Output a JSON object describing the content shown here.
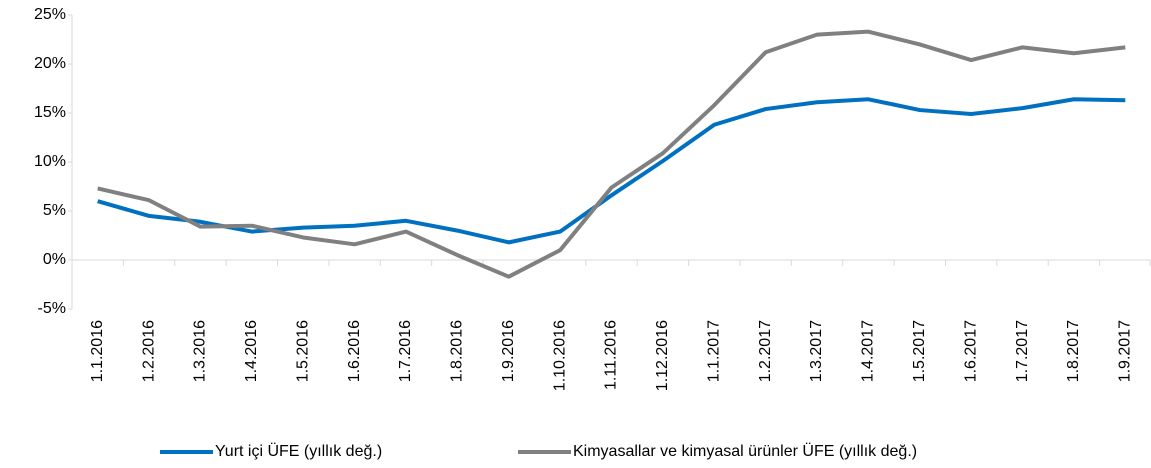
{
  "chart_data": {
    "type": "line",
    "categories": [
      "1.1.2016",
      "1.2.2016",
      "1.3.2016",
      "1.4.2016",
      "1.5.2016",
      "1.6.2016",
      "1.7.2016",
      "1.8.2016",
      "1.9.2016",
      "1.10.2016",
      "1.11.2016",
      "1.12.2016",
      "1.1.2017",
      "1.2.2017",
      "1.3.2017",
      "1.4.2017",
      "1.5.2017",
      "1.6.2017",
      "1.7.2017",
      "1.8.2017",
      "1.9.2017"
    ],
    "series": [
      {
        "name": "Yurt içi ÜFE (yıllık değ.)",
        "color": "#0070c0",
        "values": [
          6.0,
          4.5,
          3.9,
          2.9,
          3.3,
          3.5,
          4.0,
          3.0,
          1.8,
          2.9,
          6.6,
          10.1,
          13.8,
          15.4,
          16.1,
          16.4,
          15.3,
          14.9,
          15.5,
          16.4,
          16.3
        ]
      },
      {
        "name": "Kimyasallar ve kimyasal ürünler ÜFE (yıllık değ.)",
        "color": "#808080",
        "values": [
          7.3,
          6.1,
          3.4,
          3.5,
          2.3,
          1.6,
          2.9,
          0.5,
          -1.7,
          1.0,
          7.4,
          10.9,
          15.8,
          21.2,
          23.0,
          23.3,
          22.0,
          20.4,
          21.7,
          21.1,
          21.7
        ]
      }
    ],
    "ylim": [
      -5,
      25
    ],
    "yticks": [
      {
        "value": -5,
        "label": "-5%"
      },
      {
        "value": 0,
        "label": "0%"
      },
      {
        "value": 5,
        "label": "5%"
      },
      {
        "value": 10,
        "label": "10%"
      },
      {
        "value": 15,
        "label": "15%"
      },
      {
        "value": 20,
        "label": "20%"
      },
      {
        "value": 25,
        "label": "25%"
      }
    ],
    "grid": false,
    "legend": "bottom"
  }
}
